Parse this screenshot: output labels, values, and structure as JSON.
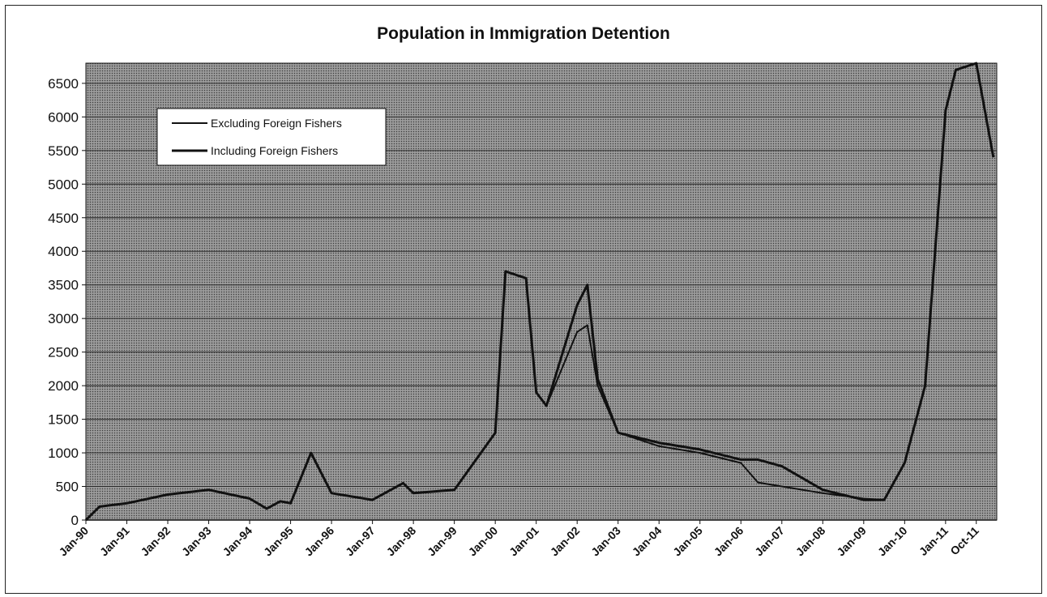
{
  "chart_data": {
    "type": "line",
    "title": "Population in Immigration Detention",
    "xlabel": "",
    "ylabel": "",
    "ylim": [
      0,
      6800
    ],
    "yticks": [
      0,
      500,
      1000,
      1500,
      2000,
      2500,
      3000,
      3500,
      4000,
      4500,
      5000,
      5500,
      6000,
      6500
    ],
    "x_range": [
      "Jan-90",
      "Apr-12"
    ],
    "xticks": [
      "Jan-90",
      "Jan-91",
      "Jan-92",
      "Jan-93",
      "Jan-94",
      "Jan-95",
      "Jan-96",
      "Jan-97",
      "Jan-98",
      "Jan-99",
      "Jan-00",
      "Jan-01",
      "Jan-02",
      "Jan-03",
      "Jan-04",
      "Jan-05",
      "Jan-06",
      "Jan-07",
      "Jan-08",
      "Jan-09",
      "Jan-10",
      "Jan-11",
      "Oct-11"
    ],
    "grid": true,
    "legend_position": "top-left",
    "colors": {
      "plot_background": "#8a8a8a",
      "line": "#111111",
      "grid": "#2a2a2a"
    },
    "series": [
      {
        "name": "Excluding Foreign Fishers",
        "x": [
          "Jan-90",
          "May-90",
          "Jan-91",
          "Jan-92",
          "Jan-93",
          "Jan-94",
          "Jun-94",
          "Oct-94",
          "Jan-95",
          "Jul-95",
          "Jan-96",
          "Jan-97",
          "Oct-97",
          "Jan-98",
          "Jan-99",
          "Jan-00",
          "Apr-00",
          "Oct-00",
          "Jan-01",
          "Apr-01",
          "Jan-02",
          "Apr-02",
          "Jul-02",
          "Jan-03",
          "Jan-04",
          "Jan-05",
          "Jan-06",
          "Jun-06",
          "Jan-07",
          "Jan-08",
          "Jan-09",
          "Jul-09",
          "Jan-10",
          "Jul-10",
          "Jan-11",
          "Apr-11",
          "Oct-11",
          "Mar-12"
        ],
        "y": [
          0,
          200,
          250,
          380,
          450,
          320,
          170,
          280,
          250,
          1000,
          400,
          300,
          550,
          400,
          450,
          1300,
          3700,
          3600,
          1900,
          1700,
          2800,
          2900,
          2000,
          1300,
          1100,
          1000,
          850,
          560,
          500,
          400,
          320,
          300,
          850,
          2000,
          6100,
          6700,
          6800,
          5400
        ]
      },
      {
        "name": "Including Foreign Fishers",
        "x": [
          "Jan-90",
          "May-90",
          "Jan-91",
          "Jan-92",
          "Jan-93",
          "Jan-94",
          "Jun-94",
          "Oct-94",
          "Jan-95",
          "Jul-95",
          "Jan-96",
          "Jan-97",
          "Oct-97",
          "Jan-98",
          "Jan-99",
          "Jan-00",
          "Apr-00",
          "Oct-00",
          "Jan-01",
          "Apr-01",
          "Jan-02",
          "Apr-02",
          "Jul-02",
          "Jan-03",
          "Jan-04",
          "Jan-05",
          "Jan-06",
          "Jun-06",
          "Jan-07",
          "Jan-08",
          "Jan-09",
          "Jul-09",
          "Jan-10",
          "Jul-10",
          "Jan-11",
          "Apr-11",
          "Oct-11",
          "Mar-12"
        ],
        "y": [
          0,
          200,
          250,
          380,
          450,
          320,
          170,
          280,
          250,
          1000,
          400,
          300,
          550,
          400,
          450,
          1300,
          3700,
          3600,
          1900,
          1700,
          3200,
          3500,
          2100,
          1300,
          1150,
          1050,
          900,
          900,
          800,
          450,
          300,
          300,
          850,
          2000,
          6100,
          6700,
          6800,
          5400
        ]
      }
    ]
  }
}
